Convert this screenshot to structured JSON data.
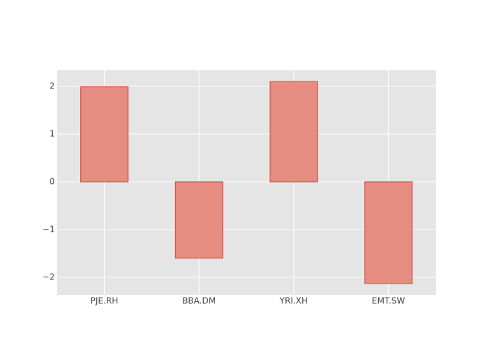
{
  "chart_data": {
    "type": "bar",
    "categories": [
      "PJE.RH",
      "BBA.DM",
      "YRI.XH",
      "EMT.SW"
    ],
    "values": [
      1.99,
      -1.6,
      2.1,
      -2.13
    ],
    "color": "#e5887a",
    "line_color": "#d9534f",
    "ylim": [
      -2.368,
      2.338
    ],
    "yticks": [
      {
        "value": -2,
        "label": "−2"
      },
      {
        "value": -1,
        "label": "−1"
      },
      0,
      1,
      2
    ],
    "grid": true
  }
}
